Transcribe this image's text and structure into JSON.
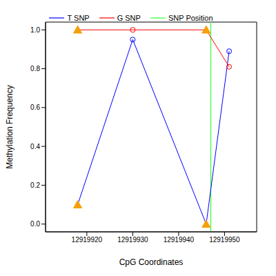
{
  "chart_data": {
    "type": "line",
    "x_label": "CpG Coordinates",
    "y_label": "Methylation Frequency",
    "x": [
      12919918,
      12919930,
      12919946,
      12919951
    ],
    "series": [
      {
        "name": "T SNP",
        "color": "#0000ff",
        "values": [
          0.1,
          0.95,
          0.0,
          0.89
        ],
        "marker": "circle",
        "markers": [
          "triangle",
          "circle",
          "triangle",
          "circle"
        ]
      },
      {
        "name": "G SNP",
        "color": "#ff0000",
        "values": [
          1.0,
          1.0,
          1.0,
          0.81
        ],
        "marker": "circle",
        "markers": [
          "triangle",
          "circle",
          "triangle",
          "circle"
        ]
      }
    ],
    "snp": {
      "name": "SNP Position",
      "color": "#33ff33",
      "x": 12919947
    },
    "xlim": [
      12919911,
      12919957
    ],
    "ylim": [
      -0.04,
      1.04
    ],
    "xticks": [
      12919920,
      12919930,
      12919940,
      12919950
    ],
    "yticks": [
      {
        "value": 0,
        "label": "0.0"
      },
      0.2,
      0.4,
      0.6,
      0.8,
      {
        "value": 1,
        "label": "1.0"
      }
    ],
    "legend": "top",
    "grid": false
  }
}
